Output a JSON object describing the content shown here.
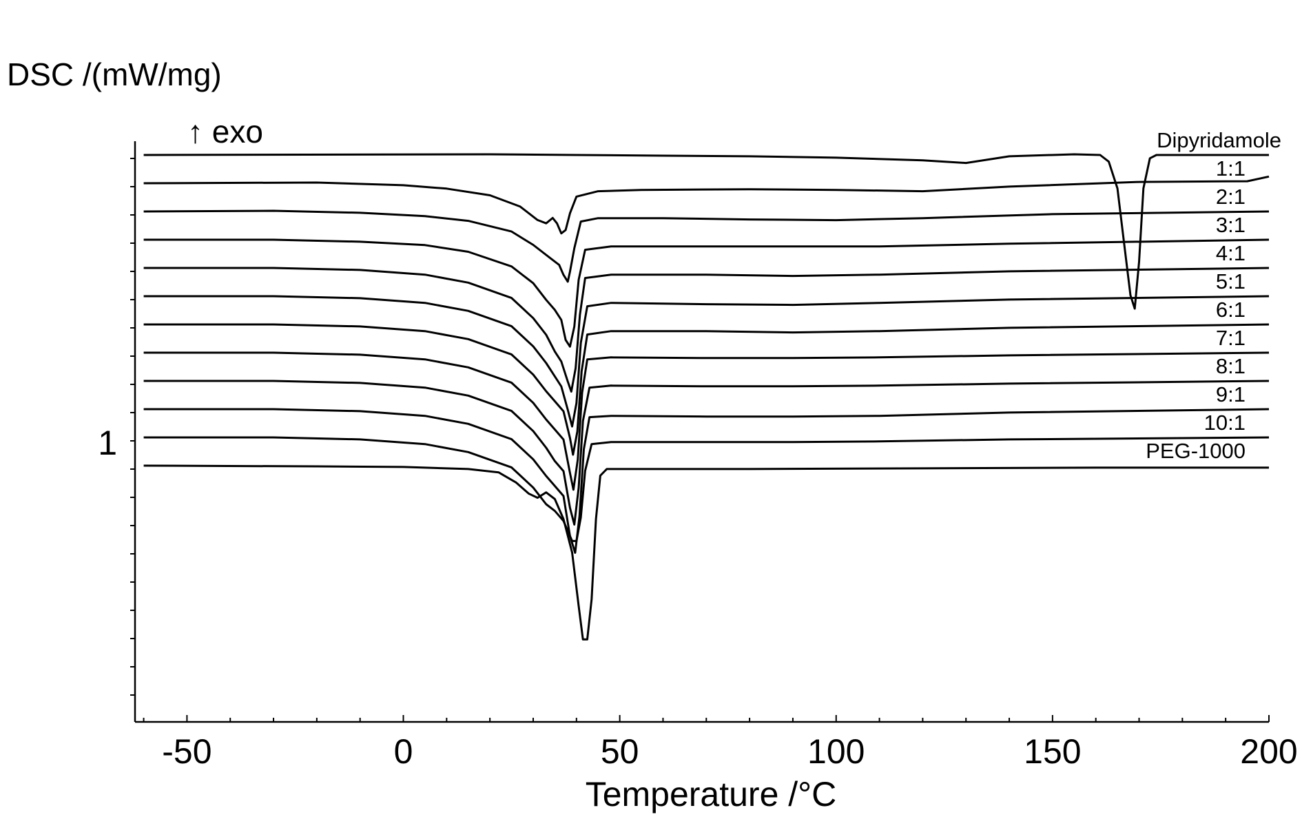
{
  "chart_data": {
    "type": "line",
    "ylabel": "DSC /(mW/mg)",
    "exo_label": "↑ exo",
    "xlabel": "Temperature /°C",
    "xlim": [
      -62,
      200
    ],
    "x_ticks": [
      -50,
      0,
      50,
      100,
      150,
      200
    ],
    "y_tick_label": "1",
    "y_tick_label_value": 0,
    "ylim": [
      -6.5,
      1.3
    ],
    "grid": false,
    "line_color": "#000000",
    "series": [
      {
        "name": "Dipyridamole",
        "points": [
          [
            -60,
            0
          ],
          [
            20,
            0.01
          ],
          [
            40,
            0.0
          ],
          [
            60,
            -0.01
          ],
          [
            80,
            -0.02
          ],
          [
            100,
            -0.04
          ],
          [
            120,
            -0.08
          ],
          [
            130,
            -0.12
          ],
          [
            140,
            -0.02
          ],
          [
            155,
            0.01
          ],
          [
            161,
            0.0
          ],
          [
            163,
            -0.1
          ],
          [
            165,
            -0.5
          ],
          [
            166.5,
            -1.3
          ],
          [
            168,
            -2.1
          ],
          [
            169,
            -2.3
          ],
          [
            170,
            -1.6
          ],
          [
            171,
            -0.5
          ],
          [
            172.5,
            -0.05
          ],
          [
            174,
            0.0
          ],
          [
            200,
            0.0
          ]
        ]
      },
      {
        "name": "1:1",
        "points": [
          [
            -60,
            0
          ],
          [
            -20,
            0.01
          ],
          [
            0,
            -0.03
          ],
          [
            10,
            -0.08
          ],
          [
            20,
            -0.18
          ],
          [
            27,
            -0.35
          ],
          [
            31,
            -0.55
          ],
          [
            33,
            -0.6
          ],
          [
            34.5,
            -0.52
          ],
          [
            35.5,
            -0.6
          ],
          [
            36.5,
            -0.75
          ],
          [
            37.5,
            -0.7
          ],
          [
            38.5,
            -0.45
          ],
          [
            40,
            -0.2
          ],
          [
            45,
            -0.12
          ],
          [
            55,
            -0.1
          ],
          [
            80,
            -0.09
          ],
          [
            100,
            -0.1
          ],
          [
            120,
            -0.12
          ],
          [
            140,
            -0.05
          ],
          [
            170,
            0.02
          ],
          [
            195,
            0.03
          ],
          [
            200,
            0.1
          ]
        ]
      },
      {
        "name": "2:1",
        "points": [
          [
            -60,
            0
          ],
          [
            -30,
            0.01
          ],
          [
            -10,
            -0.02
          ],
          [
            5,
            -0.07
          ],
          [
            15,
            -0.14
          ],
          [
            25,
            -0.3
          ],
          [
            30,
            -0.5
          ],
          [
            34,
            -0.7
          ],
          [
            36,
            -0.8
          ],
          [
            37,
            -0.95
          ],
          [
            38,
            -1.05
          ],
          [
            38.5,
            -0.9
          ],
          [
            39.5,
            -0.55
          ],
          [
            41,
            -0.15
          ],
          [
            45,
            -0.1
          ],
          [
            60,
            -0.1
          ],
          [
            80,
            -0.12
          ],
          [
            100,
            -0.13
          ],
          [
            120,
            -0.1
          ],
          [
            150,
            -0.04
          ],
          [
            200,
            0.0
          ]
        ]
      },
      {
        "name": "3:1",
        "points": [
          [
            -60,
            0
          ],
          [
            -30,
            0.0
          ],
          [
            -10,
            -0.03
          ],
          [
            5,
            -0.08
          ],
          [
            15,
            -0.18
          ],
          [
            25,
            -0.4
          ],
          [
            30,
            -0.65
          ],
          [
            33,
            -0.9
          ],
          [
            35,
            -1.05
          ],
          [
            36.5,
            -1.2
          ],
          [
            37.5,
            -1.5
          ],
          [
            38.5,
            -1.6
          ],
          [
            39.5,
            -1.3
          ],
          [
            40.5,
            -0.6
          ],
          [
            42,
            -0.15
          ],
          [
            48,
            -0.1
          ],
          [
            70,
            -0.1
          ],
          [
            90,
            -0.1
          ],
          [
            110,
            -0.1
          ],
          [
            140,
            -0.06
          ],
          [
            200,
            0.0
          ]
        ]
      },
      {
        "name": "4:1",
        "points": [
          [
            -60,
            0
          ],
          [
            -30,
            0.0
          ],
          [
            -10,
            -0.03
          ],
          [
            5,
            -0.1
          ],
          [
            15,
            -0.22
          ],
          [
            25,
            -0.45
          ],
          [
            30,
            -0.75
          ],
          [
            33,
            -1.0
          ],
          [
            35,
            -1.25
          ],
          [
            36.5,
            -1.4
          ],
          [
            38,
            -1.7
          ],
          [
            38.8,
            -1.85
          ],
          [
            39.8,
            -1.5
          ],
          [
            40.8,
            -0.7
          ],
          [
            42,
            -0.15
          ],
          [
            48,
            -0.1
          ],
          [
            70,
            -0.1
          ],
          [
            90,
            -0.12
          ],
          [
            110,
            -0.1
          ],
          [
            140,
            -0.05
          ],
          [
            200,
            0.0
          ]
        ]
      },
      {
        "name": "5:1",
        "points": [
          [
            -60,
            0
          ],
          [
            -30,
            0.0
          ],
          [
            -10,
            -0.03
          ],
          [
            5,
            -0.1
          ],
          [
            15,
            -0.22
          ],
          [
            25,
            -0.45
          ],
          [
            30,
            -0.75
          ],
          [
            33,
            -1.0
          ],
          [
            35,
            -1.2
          ],
          [
            36.5,
            -1.35
          ],
          [
            38,
            -1.7
          ],
          [
            39,
            -1.95
          ],
          [
            40,
            -1.6
          ],
          [
            41,
            -0.7
          ],
          [
            42.5,
            -0.15
          ],
          [
            48,
            -0.1
          ],
          [
            70,
            -0.12
          ],
          [
            90,
            -0.13
          ],
          [
            110,
            -0.1
          ],
          [
            140,
            -0.05
          ],
          [
            200,
            0.0
          ]
        ]
      },
      {
        "name": "6:1",
        "points": [
          [
            -60,
            0
          ],
          [
            -30,
            0.0
          ],
          [
            -10,
            -0.03
          ],
          [
            5,
            -0.1
          ],
          [
            15,
            -0.22
          ],
          [
            25,
            -0.45
          ],
          [
            30,
            -0.75
          ],
          [
            33,
            -1.0
          ],
          [
            35,
            -1.15
          ],
          [
            37,
            -1.3
          ],
          [
            38.5,
            -1.7
          ],
          [
            39.2,
            -1.95
          ],
          [
            40.2,
            -1.6
          ],
          [
            41.2,
            -0.7
          ],
          [
            42.5,
            -0.15
          ],
          [
            48,
            -0.1
          ],
          [
            70,
            -0.1
          ],
          [
            90,
            -0.12
          ],
          [
            110,
            -0.1
          ],
          [
            140,
            -0.05
          ],
          [
            200,
            0.0
          ]
        ]
      },
      {
        "name": "7:1",
        "points": [
          [
            -60,
            0
          ],
          [
            -30,
            0.0
          ],
          [
            -10,
            -0.03
          ],
          [
            5,
            -0.1
          ],
          [
            15,
            -0.22
          ],
          [
            25,
            -0.45
          ],
          [
            30,
            -0.75
          ],
          [
            33,
            -1.0
          ],
          [
            35,
            -1.15
          ],
          [
            37,
            -1.3
          ],
          [
            38.5,
            -1.8
          ],
          [
            39.3,
            -2.05
          ],
          [
            40.3,
            -1.6
          ],
          [
            41.3,
            -0.6
          ],
          [
            42.5,
            -0.1
          ],
          [
            48,
            -0.07
          ],
          [
            70,
            -0.08
          ],
          [
            90,
            -0.08
          ],
          [
            110,
            -0.07
          ],
          [
            140,
            -0.04
          ],
          [
            200,
            0.0
          ]
        ]
      },
      {
        "name": "8:1",
        "points": [
          [
            -60,
            0
          ],
          [
            -30,
            0.0
          ],
          [
            -10,
            -0.03
          ],
          [
            5,
            -0.1
          ],
          [
            15,
            -0.22
          ],
          [
            25,
            -0.45
          ],
          [
            30,
            -0.75
          ],
          [
            33,
            -1.0
          ],
          [
            35,
            -1.2
          ],
          [
            37,
            -1.35
          ],
          [
            38.5,
            -1.9
          ],
          [
            39.5,
            -2.15
          ],
          [
            40.5,
            -1.6
          ],
          [
            41.5,
            -0.6
          ],
          [
            43,
            -0.1
          ],
          [
            48,
            -0.07
          ],
          [
            70,
            -0.08
          ],
          [
            90,
            -0.08
          ],
          [
            110,
            -0.07
          ],
          [
            140,
            -0.04
          ],
          [
            200,
            0.0
          ]
        ]
      },
      {
        "name": "9:1",
        "points": [
          [
            -60,
            0
          ],
          [
            -30,
            0.0
          ],
          [
            -10,
            -0.03
          ],
          [
            5,
            -0.1
          ],
          [
            15,
            -0.22
          ],
          [
            25,
            -0.45
          ],
          [
            30,
            -0.75
          ],
          [
            33,
            -1.0
          ],
          [
            35,
            -1.15
          ],
          [
            37,
            -1.3
          ],
          [
            38.5,
            -1.9
          ],
          [
            39.7,
            -2.15
          ],
          [
            40.7,
            -1.6
          ],
          [
            41.7,
            -0.6
          ],
          [
            43,
            -0.12
          ],
          [
            48,
            -0.1
          ],
          [
            70,
            -0.11
          ],
          [
            90,
            -0.11
          ],
          [
            110,
            -0.1
          ],
          [
            140,
            -0.05
          ],
          [
            200,
            0.0
          ]
        ]
      },
      {
        "name": "10:1",
        "points": [
          [
            -60,
            0
          ],
          [
            -30,
            0.0
          ],
          [
            -10,
            -0.03
          ],
          [
            5,
            -0.1
          ],
          [
            15,
            -0.22
          ],
          [
            25,
            -0.45
          ],
          [
            30,
            -0.75
          ],
          [
            33,
            -1.0
          ],
          [
            35,
            -1.1
          ],
          [
            37,
            -1.25
          ],
          [
            39,
            -1.55
          ],
          [
            40,
            -1.55
          ],
          [
            41,
            -1.2
          ],
          [
            42,
            -0.5
          ],
          [
            43.5,
            -0.1
          ],
          [
            48,
            -0.07
          ],
          [
            70,
            -0.07
          ],
          [
            90,
            -0.07
          ],
          [
            110,
            -0.06
          ],
          [
            140,
            -0.03
          ],
          [
            200,
            0.0
          ]
        ]
      },
      {
        "name": "PEG-1000",
        "points": [
          [
            -60,
            0
          ],
          [
            -20,
            -0.01
          ],
          [
            0,
            -0.02
          ],
          [
            15,
            -0.05
          ],
          [
            22,
            -0.1
          ],
          [
            26,
            -0.25
          ],
          [
            29,
            -0.42
          ],
          [
            31,
            -0.48
          ],
          [
            33,
            -0.4
          ],
          [
            35,
            -0.5
          ],
          [
            37,
            -0.8
          ],
          [
            39,
            -1.3
          ],
          [
            40.5,
            -2.1
          ],
          [
            41.5,
            -2.6
          ],
          [
            42.5,
            -2.6
          ],
          [
            43.5,
            -2.0
          ],
          [
            44.5,
            -0.8
          ],
          [
            45.5,
            -0.15
          ],
          [
            47,
            -0.05
          ],
          [
            55,
            -0.05
          ],
          [
            80,
            -0.05
          ],
          [
            120,
            -0.04
          ],
          [
            160,
            -0.03
          ],
          [
            200,
            -0.03
          ]
        ]
      }
    ]
  }
}
